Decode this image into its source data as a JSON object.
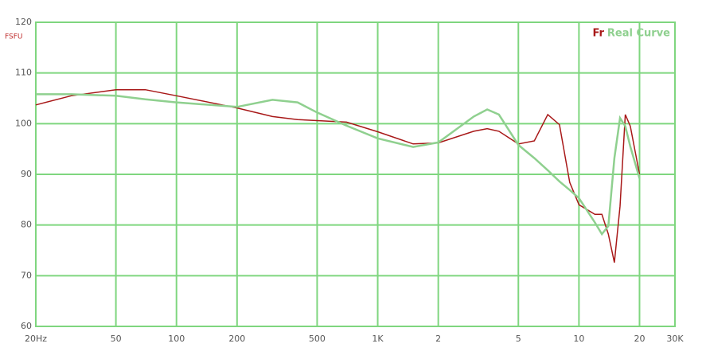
{
  "chart_data": {
    "type": "line",
    "ylabel": "FSFU",
    "x": [
      20,
      30,
      50,
      70,
      100,
      200,
      300,
      400,
      500,
      700,
      1000,
      1500,
      2000,
      3000,
      3500,
      4000,
      5000,
      6000,
      7000,
      8000,
      9000,
      10000,
      12000,
      13000,
      14000,
      15000,
      16000,
      17000,
      18000,
      20000
    ],
    "series": [
      {
        "name": "Fr",
        "color": "#a81818",
        "values": [
          103.7,
          105.5,
          106.7,
          106.7,
          105.5,
          103.1,
          101.4,
          100.8,
          100.6,
          100.3,
          98.4,
          96,
          96.2,
          98.5,
          99,
          98.5,
          96,
          96.6,
          101.8,
          99.8,
          88.4,
          84,
          82.1,
          82.1,
          78.2,
          72.6,
          83.7,
          101.8,
          99.5,
          90
        ]
      },
      {
        "name": "Real Curve",
        "color": "#8fd08f",
        "values": [
          105.8,
          105.8,
          105.5,
          104.8,
          104.2,
          103.3,
          104.7,
          104.2,
          102.2,
          99.6,
          97.1,
          95.4,
          96.3,
          101.4,
          102.8,
          101.8,
          95.8,
          93.2,
          90.8,
          88.6,
          86.9,
          85.3,
          80.5,
          78.2,
          79.8,
          93.2,
          101.1,
          99.5,
          95.5,
          89.2
        ]
      }
    ],
    "xlog": true,
    "xlim": [
      20,
      30000
    ],
    "xticks": [
      {
        "value": 20,
        "label": "20Hz"
      },
      50,
      100,
      200,
      500,
      {
        "value": 1000,
        "label": "1K"
      },
      {
        "value": 2000,
        "label": "2"
      },
      {
        "value": 5000,
        "label": "5"
      },
      {
        "value": 10000,
        "label": "10"
      },
      {
        "value": 20000,
        "label": "20"
      },
      {
        "value": 30000,
        "label": "30K"
      }
    ],
    "ylim": [
      60,
      120
    ],
    "yticks": [
      60,
      70,
      80,
      90,
      100,
      110,
      120
    ],
    "grid": true,
    "legend": "top-right"
  }
}
